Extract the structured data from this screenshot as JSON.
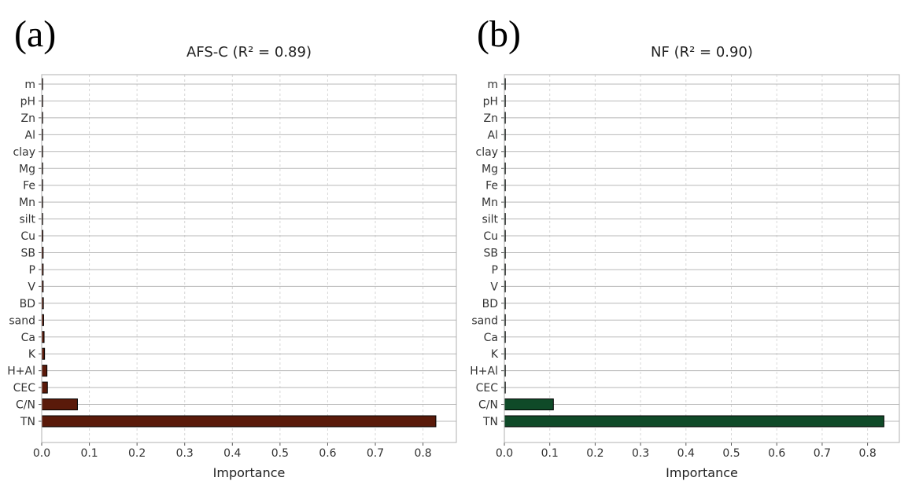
{
  "panels": [
    {
      "letter": "(a)"
    },
    {
      "letter": "(b)"
    }
  ],
  "chart_data": [
    {
      "type": "bar",
      "orientation": "horizontal",
      "title": "AFS-C (R² = 0.89)",
      "xlabel": "Importance",
      "ylabel": "",
      "xlim": [
        0,
        0.87
      ],
      "xticks": [
        "0.0",
        "0.1",
        "0.2",
        "0.3",
        "0.4",
        "0.5",
        "0.6",
        "0.7",
        "0.8"
      ],
      "grid": "vertical-dashed",
      "bar_color": "#5a1a0a",
      "categories": [
        "m",
        "pH",
        "Zn",
        "Al",
        "clay",
        "Mg",
        "Fe",
        "Mn",
        "silt",
        "Cu",
        "SB",
        "P",
        "V",
        "BD",
        "sand",
        "Ca",
        "K",
        "H+Al",
        "CEC",
        "C/N",
        "TN"
      ],
      "values": [
        0.0005,
        0.0015,
        0.0015,
        0.0015,
        0.002,
        0.002,
        0.002,
        0.002,
        0.002,
        0.0025,
        0.003,
        0.003,
        0.003,
        0.0035,
        0.004,
        0.005,
        0.006,
        0.011,
        0.012,
        0.075,
        0.827
      ]
    },
    {
      "type": "bar",
      "orientation": "horizontal",
      "title": "NF (R² = 0.90)",
      "xlabel": "Importance",
      "ylabel": "",
      "xlim": [
        0,
        0.87
      ],
      "xticks": [
        "0.0",
        "0.1",
        "0.2",
        "0.3",
        "0.4",
        "0.5",
        "0.6",
        "0.7",
        "0.8"
      ],
      "grid": "vertical-dashed",
      "bar_color": "#0f4a28",
      "categories": [
        "m",
        "pH",
        "Zn",
        "Al",
        "clay",
        "Mg",
        "Fe",
        "Mn",
        "silt",
        "Cu",
        "SB",
        "P",
        "V",
        "BD",
        "sand",
        "Ca",
        "K",
        "H+Al",
        "CEC",
        "C/N",
        "TN"
      ],
      "values": [
        0.0005,
        0.0015,
        0.0015,
        0.0005,
        0.002,
        0.0015,
        0.002,
        0.0005,
        0.002,
        0.002,
        0.0005,
        0.002,
        0.002,
        0.002,
        0.002,
        0.0015,
        0.0015,
        0.002,
        0.0015,
        0.108,
        0.836
      ]
    }
  ]
}
